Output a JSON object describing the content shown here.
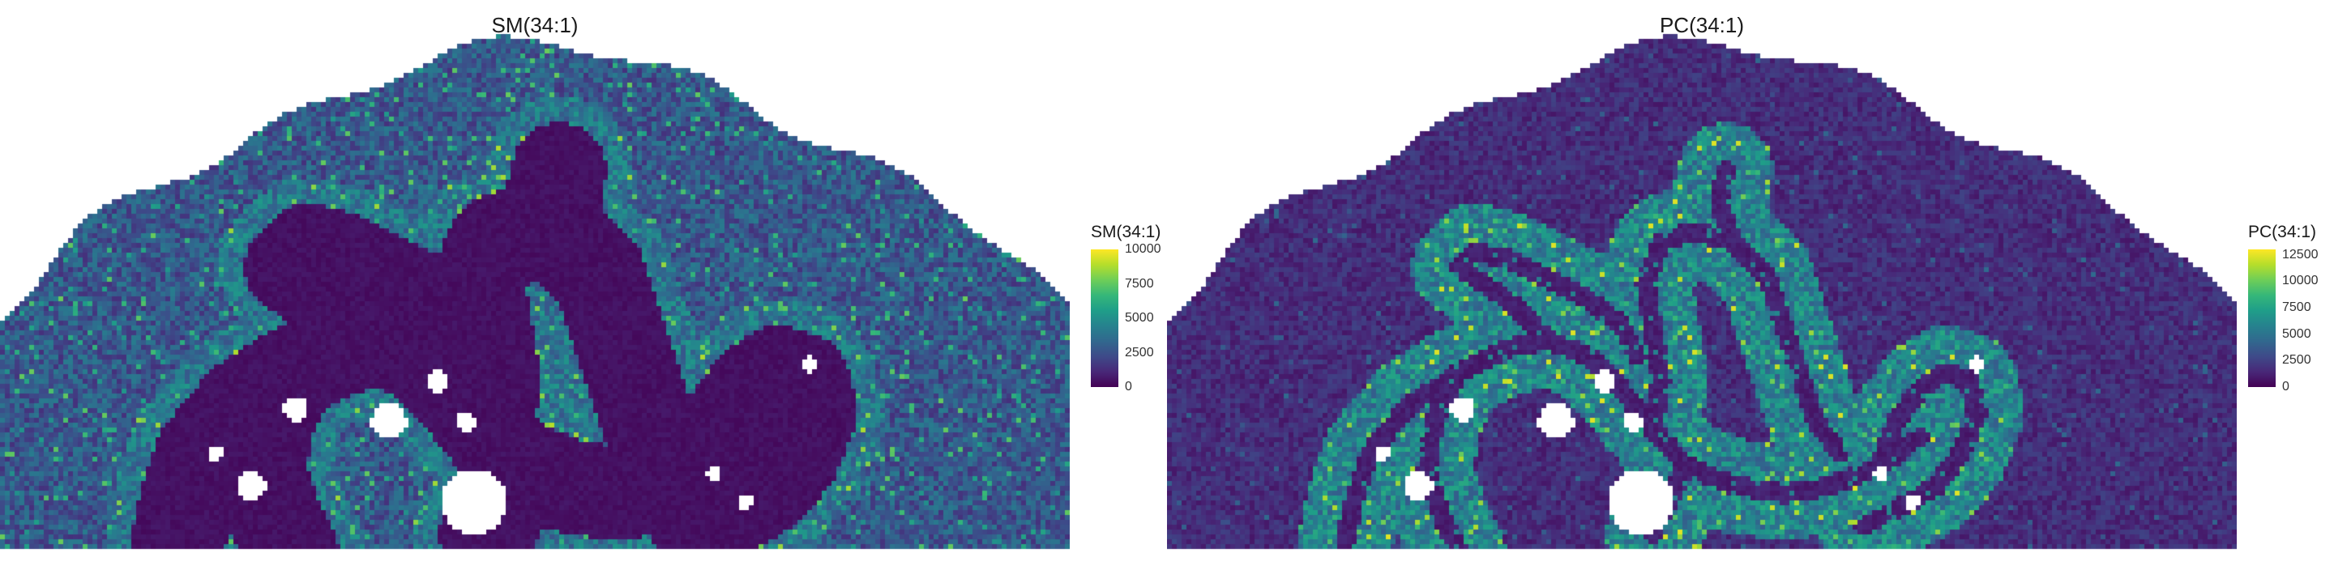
{
  "chart_data": [
    {
      "type": "heatmap",
      "title": "SM(34:1)",
      "legend_title": "SM(34:1)",
      "colormap": "viridis",
      "color_range": [
        0,
        10000
      ],
      "legend_ticks": [
        "0",
        "2500",
        "5000",
        "7500",
        "10000"
      ],
      "legend_tick_values": [
        0,
        2500,
        5000,
        7500,
        10000
      ],
      "pattern": "high signal in outer tissue, low signal in inner folded band",
      "legend_position": "right"
    },
    {
      "type": "heatmap",
      "title": "PC(34:1)",
      "legend_title": "PC(34:1)",
      "colormap": "viridis",
      "color_range": [
        0,
        13000
      ],
      "legend_ticks": [
        "0",
        "2500",
        "5000",
        "7500",
        "10000",
        "12500"
      ],
      "legend_tick_values": [
        0,
        2500,
        5000,
        7500,
        10000,
        12500
      ],
      "pattern": "high signal in inner folded band, low signal in outer tissue",
      "legend_position": "right"
    }
  ]
}
